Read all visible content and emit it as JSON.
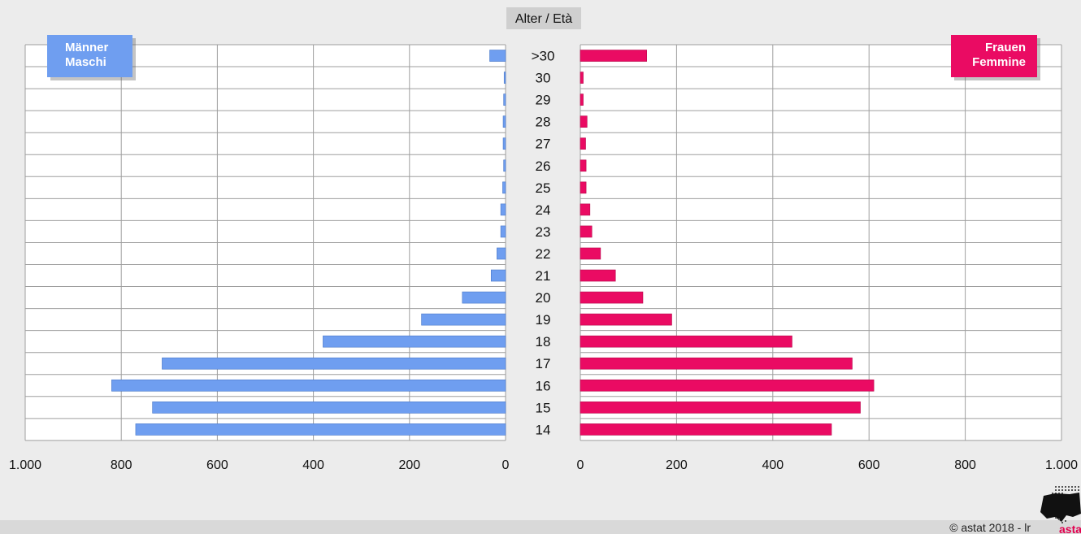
{
  "chart_data": {
    "type": "bar",
    "title": "Alter / Età",
    "categories": [
      ">30",
      "30",
      "29",
      "28",
      "27",
      "26",
      "25",
      "24",
      "23",
      "22",
      "21",
      "20",
      "19",
      "18",
      "17",
      "16",
      "15",
      "14"
    ],
    "series": [
      {
        "name": "Männer Maschi",
        "values": [
          33,
          3,
          4,
          5,
          5,
          4,
          6,
          10,
          10,
          18,
          30,
          90,
          175,
          380,
          715,
          820,
          735,
          770
        ]
      },
      {
        "name": "Frauen Femmine",
        "values": [
          138,
          6,
          6,
          14,
          11,
          12,
          12,
          20,
          24,
          42,
          73,
          130,
          190,
          440,
          565,
          610,
          582,
          522
        ]
      }
    ],
    "xlim": [
      0,
      1000
    ],
    "xticks": [
      "1.000",
      "800",
      "600",
      "400",
      "200",
      "0"
    ],
    "xticks_right": [
      "0",
      "200",
      "400",
      "600",
      "800",
      "1.000"
    ],
    "legend": {
      "left": [
        "Männer",
        "Maschi"
      ],
      "right": [
        "Frauen",
        "Femmine"
      ]
    },
    "grid": true,
    "colors": {
      "male": "#6f9ef0",
      "female": "#ea0b63",
      "background": "#ececec",
      "plot": "#ffffff",
      "grid": "#9e9e9e"
    }
  },
  "footer": {
    "copyright": "© astat 2018 - lr",
    "logo_text": "astat"
  }
}
